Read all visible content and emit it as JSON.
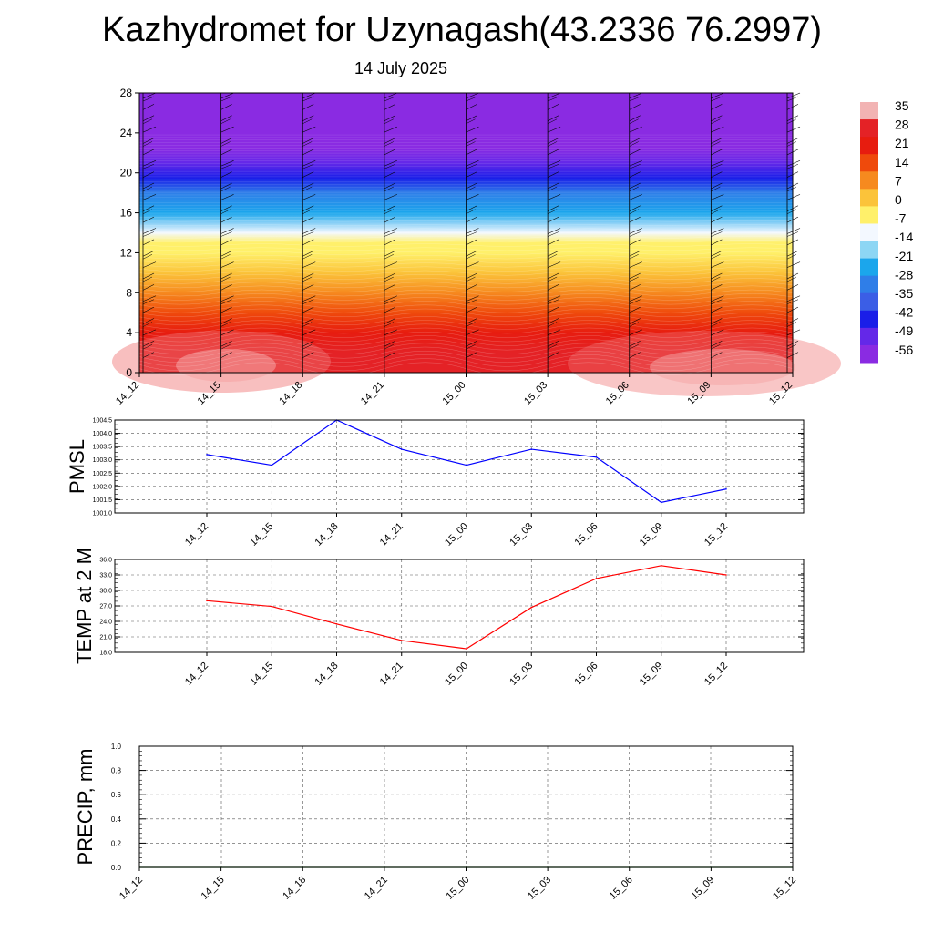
{
  "title": "Kazhydromet for Uzynagash(43.2336 76.2997)",
  "subtitle": "14 July 2025",
  "chart_data": [
    {
      "type": "heatmap",
      "name": "upper-air-temperature",
      "x_categories": [
        "14_12",
        "14_15",
        "14_18",
        "14_21",
        "15_00",
        "15_03",
        "15_06",
        "15_09",
        "15_12"
      ],
      "ylim": [
        0,
        28
      ],
      "yticks": [
        "0",
        "4",
        "8",
        "12",
        "16",
        "20",
        "24",
        "28"
      ],
      "temperature_by_height": [
        {
          "y": 0,
          "value": 28
        },
        {
          "y": 2,
          "value": 25
        },
        {
          "y": 4,
          "value": 21
        },
        {
          "y": 6,
          "value": 15
        },
        {
          "y": 8,
          "value": 10
        },
        {
          "y": 10,
          "value": 3
        },
        {
          "y": 12,
          "value": -4
        },
        {
          "y": 13,
          "value": -10
        },
        {
          "y": 14,
          "value": -16
        },
        {
          "y": 16,
          "value": -26
        },
        {
          "y": 18,
          "value": -38
        },
        {
          "y": 19.5,
          "value": -48
        },
        {
          "y": 21,
          "value": -56
        },
        {
          "y": 22.5,
          "value": -60
        },
        {
          "y": 28,
          "value": -60
        }
      ],
      "colorbar": {
        "labels": [
          "35",
          "28",
          "21",
          "14",
          "7",
          "0",
          "-7",
          "-14",
          "-21",
          "-28",
          "-35",
          "-42",
          "-49",
          "-56"
        ],
        "stops": [
          {
            "value": 35,
            "color": "#f2b3b3"
          },
          {
            "value": 28,
            "color": "#e42226"
          },
          {
            "value": 21,
            "color": "#e71c0f"
          },
          {
            "value": 14,
            "color": "#ef4a0c"
          },
          {
            "value": 7,
            "color": "#f68a1f"
          },
          {
            "value": 0,
            "color": "#fbc33a"
          },
          {
            "value": -7,
            "color": "#fff06a"
          },
          {
            "value": -14,
            "color": "#f3f8ff"
          },
          {
            "value": -21,
            "color": "#8dd6f4"
          },
          {
            "value": -28,
            "color": "#1ba6ec"
          },
          {
            "value": -35,
            "color": "#2f7ee8"
          },
          {
            "value": -42,
            "color": "#3b5ee6"
          },
          {
            "value": -49,
            "color": "#1a1ee8"
          },
          {
            "value": -56,
            "color": "#6428e8"
          },
          {
            "value": -60,
            "color": "#8a2be2"
          }
        ]
      }
    },
    {
      "type": "line",
      "name": "pmsl",
      "ylabel": "PMSL",
      "categories": [
        "14_12",
        "14_15",
        "14_18",
        "14_21",
        "15_00",
        "15_03",
        "15_06",
        "15_09",
        "15_12"
      ],
      "values": [
        1003.2,
        1002.8,
        1004.5,
        1003.4,
        1002.8,
        1003.4,
        1003.1,
        1001.4,
        1001.9
      ],
      "ylim": [
        1001.0,
        1004.5
      ],
      "yticks": [
        "1001.0",
        "1001.5",
        "1002.0",
        "1002.5",
        "1003.0",
        "1003.5",
        "1004.0",
        "1004.5"
      ],
      "color": "#0000ff",
      "grid": true
    },
    {
      "type": "line",
      "name": "temp-2m",
      "ylabel": "TEMP at 2 M",
      "categories": [
        "14_12",
        "14_15",
        "14_18",
        "14_21",
        "15_00",
        "15_03",
        "15_06",
        "15_09",
        "15_12"
      ],
      "values": [
        28.0,
        26.9,
        23.5,
        20.3,
        18.7,
        26.7,
        32.3,
        34.8,
        33.0
      ],
      "ylim": [
        18.0,
        36.0
      ],
      "yticks": [
        "18.0",
        "21.0",
        "24.0",
        "27.0",
        "30.0",
        "33.0",
        "36.0"
      ],
      "color": "#ff0000",
      "grid": true
    },
    {
      "type": "line",
      "name": "precip",
      "ylabel": "PRECIP, mm",
      "categories": [
        "14_12",
        "14_15",
        "14_18",
        "14_21",
        "15_00",
        "15_03",
        "15_06",
        "15_09",
        "15_12"
      ],
      "values": [
        0,
        0,
        0,
        0,
        0,
        0,
        0,
        0,
        0
      ],
      "ylim": [
        0.0,
        1.0
      ],
      "yticks": [
        "0.0",
        "0.2",
        "0.4",
        "0.6",
        "0.8",
        "1.0"
      ],
      "color": "#006400",
      "grid": true
    }
  ]
}
